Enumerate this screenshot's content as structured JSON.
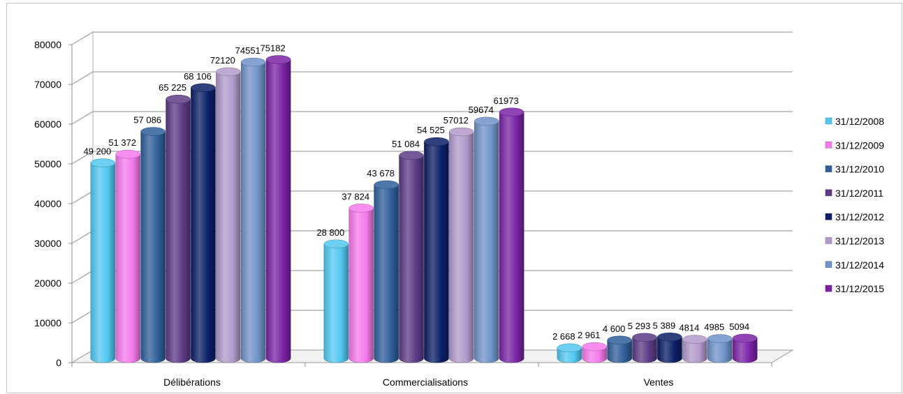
{
  "chart_data": {
    "type": "bar",
    "title": "",
    "xlabel": "",
    "ylabel": "",
    "ylim": [
      0,
      80000
    ],
    "yticks": [
      0,
      10000,
      20000,
      30000,
      40000,
      50000,
      60000,
      70000,
      80000
    ],
    "ytick_labels": [
      "0",
      "10000",
      "20000",
      "30000",
      "40000",
      "50000",
      "60000",
      "70000",
      "80000"
    ],
    "grid": true,
    "legend_position": "right",
    "style": "3d-cylinder",
    "categories": [
      "Délibérations",
      "Commercialisations",
      "Ventes"
    ],
    "series": [
      {
        "name": "31/12/2008",
        "color": "#52C8F0",
        "values": [
          49200,
          28800,
          2668
        ],
        "labels": [
          "49 200",
          "28 800",
          "2 668"
        ]
      },
      {
        "name": "31/12/2009",
        "color": "#F57AEC",
        "values": [
          51372,
          37824,
          2961
        ],
        "labels": [
          "51 372",
          "37 824",
          "2 961"
        ]
      },
      {
        "name": "31/12/2010",
        "color": "#2F5F9A",
        "values": [
          57086,
          43678,
          4600
        ],
        "labels": [
          "57 086",
          "43 678",
          "4 600"
        ]
      },
      {
        "name": "31/12/2011",
        "color": "#5C3A86",
        "values": [
          65225,
          51084,
          5293
        ],
        "labels": [
          "65 225",
          "51 084",
          "5 293"
        ]
      },
      {
        "name": "31/12/2012",
        "color": "#0A1F66",
        "values": [
          68106,
          54525,
          5389
        ],
        "labels": [
          "68 106",
          "54 525",
          "5 389"
        ]
      },
      {
        "name": "31/12/2013",
        "color": "#B29ACB",
        "values": [
          72120,
          57012,
          4814
        ],
        "labels": [
          "72120",
          "57012",
          "4814"
        ]
      },
      {
        "name": "31/12/2014",
        "color": "#6F93C8",
        "values": [
          74551,
          59674,
          4985
        ],
        "labels": [
          "74551",
          "59674",
          "4985"
        ]
      },
      {
        "name": "31/12/2015",
        "color": "#7A23A6",
        "values": [
          75182,
          61973,
          5094
        ],
        "labels": [
          "75182",
          "61973",
          "5094"
        ]
      }
    ]
  }
}
